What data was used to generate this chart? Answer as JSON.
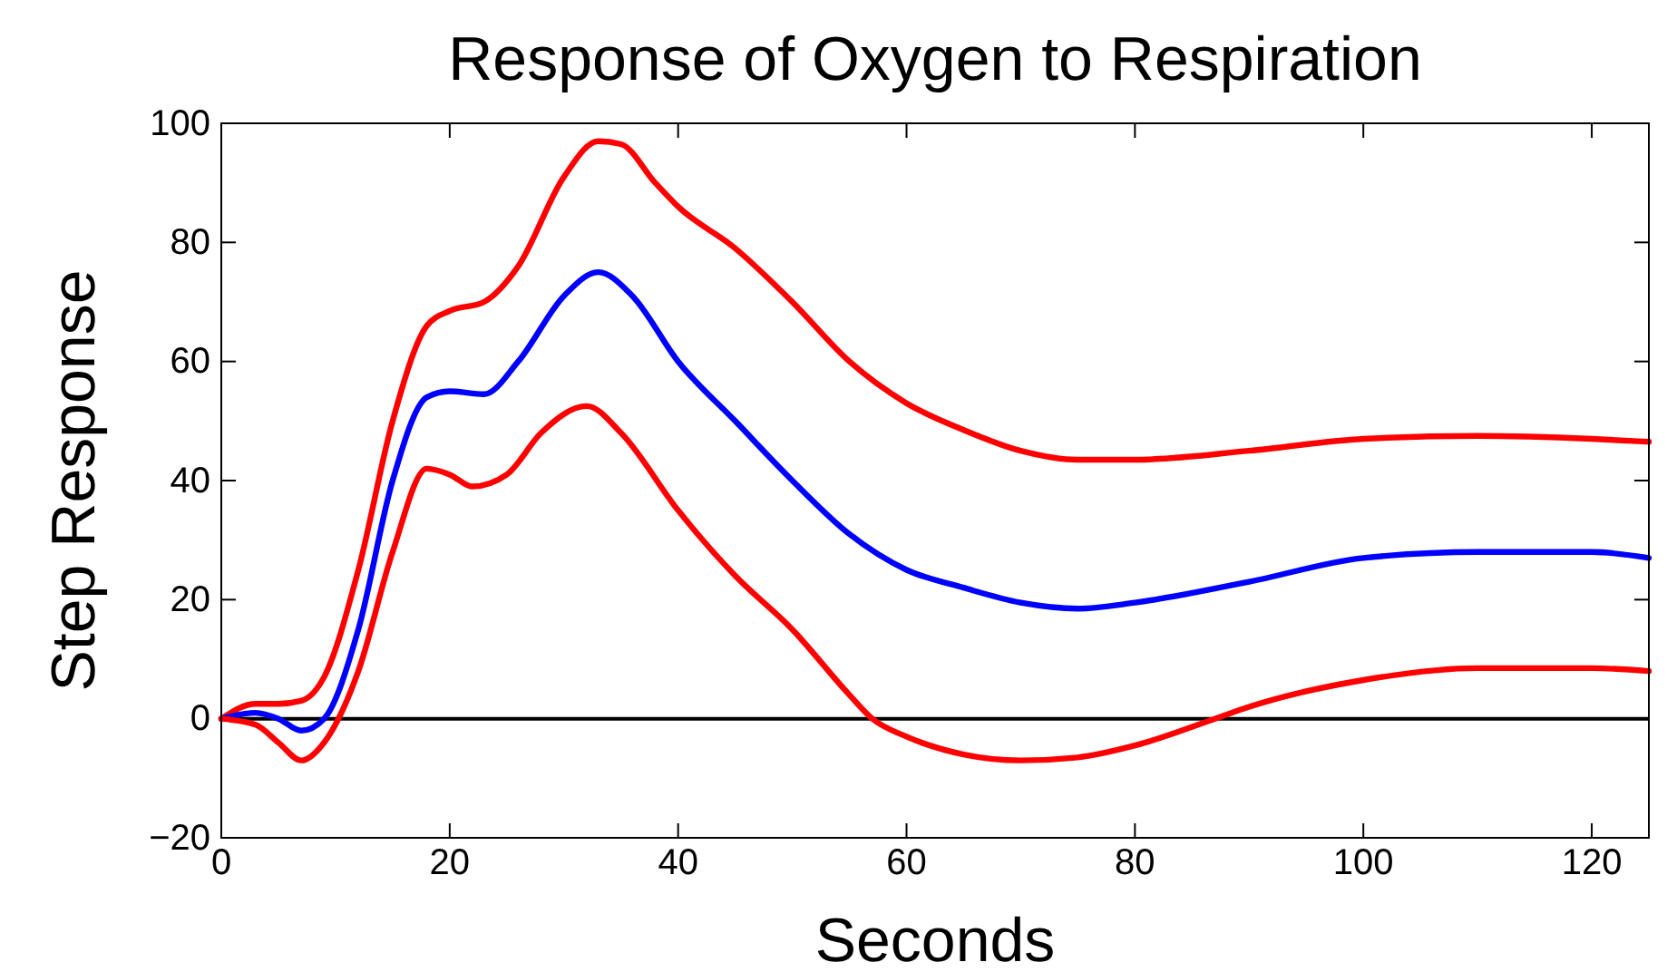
{
  "chart_data": {
    "type": "line",
    "title": "Response of Oxygen to Respiration",
    "xlabel": "Seconds",
    "ylabel": "Step Response",
    "xlim": [
      0,
      125
    ],
    "ylim": [
      -20,
      100
    ],
    "xticks": [
      0,
      20,
      40,
      60,
      80,
      100,
      120
    ],
    "yticks": [
      -20,
      0,
      20,
      40,
      60,
      80,
      100
    ],
    "grid": false,
    "marker": "none",
    "line_style": "solid",
    "ref_lines": [
      {
        "axis": "y",
        "value": 0,
        "color": "#000000"
      }
    ],
    "series": [
      {
        "color": "#ff0000",
        "x": [
          0,
          3,
          5,
          7,
          9,
          12,
          15,
          18,
          20,
          23,
          26,
          30,
          33,
          35,
          38,
          40,
          45,
          50,
          55,
          60,
          65,
          70,
          75,
          80,
          90,
          100,
          110,
          120,
          125
        ],
        "values": [
          0,
          2.5,
          2.5,
          3,
          7,
          25,
          50,
          66,
          68.5,
          70,
          76,
          91,
          97,
          96.5,
          90,
          86,
          79,
          70,
          60,
          53,
          48.5,
          45,
          43.5,
          43.5,
          45,
          47,
          47.5,
          47,
          46.5
        ]
      },
      {
        "color": "#0000ff",
        "x": [
          0,
          3,
          5,
          7,
          9,
          12,
          15,
          18,
          20,
          23,
          26,
          30,
          33,
          36,
          40,
          45,
          50,
          55,
          60,
          65,
          70,
          75,
          80,
          90,
          100,
          110,
          120,
          125
        ],
        "values": [
          0,
          1,
          0,
          -2,
          0,
          15,
          40,
          54,
          55,
          54.5,
          60,
          71,
          75,
          71,
          60,
          50,
          40,
          31,
          25,
          22,
          19.5,
          18.5,
          19.5,
          23,
          27,
          28,
          28,
          27
        ]
      },
      {
        "color": "#ff0000",
        "x": [
          0,
          3,
          5,
          7,
          9,
          12,
          15,
          18,
          20,
          22,
          25,
          28,
          32,
          35,
          40,
          45,
          50,
          55,
          57,
          60,
          65,
          70,
          75,
          80,
          87,
          90,
          100,
          110,
          120,
          125
        ],
        "values": [
          0,
          -1,
          -4,
          -7,
          -4,
          8,
          28,
          42,
          41,
          39,
          41,
          48,
          52.5,
          48,
          35,
          24,
          15,
          4,
          0,
          -3,
          -6,
          -7,
          -6.5,
          -4.5,
          0,
          2,
          6.5,
          8.5,
          8.5,
          8
        ]
      }
    ]
  }
}
